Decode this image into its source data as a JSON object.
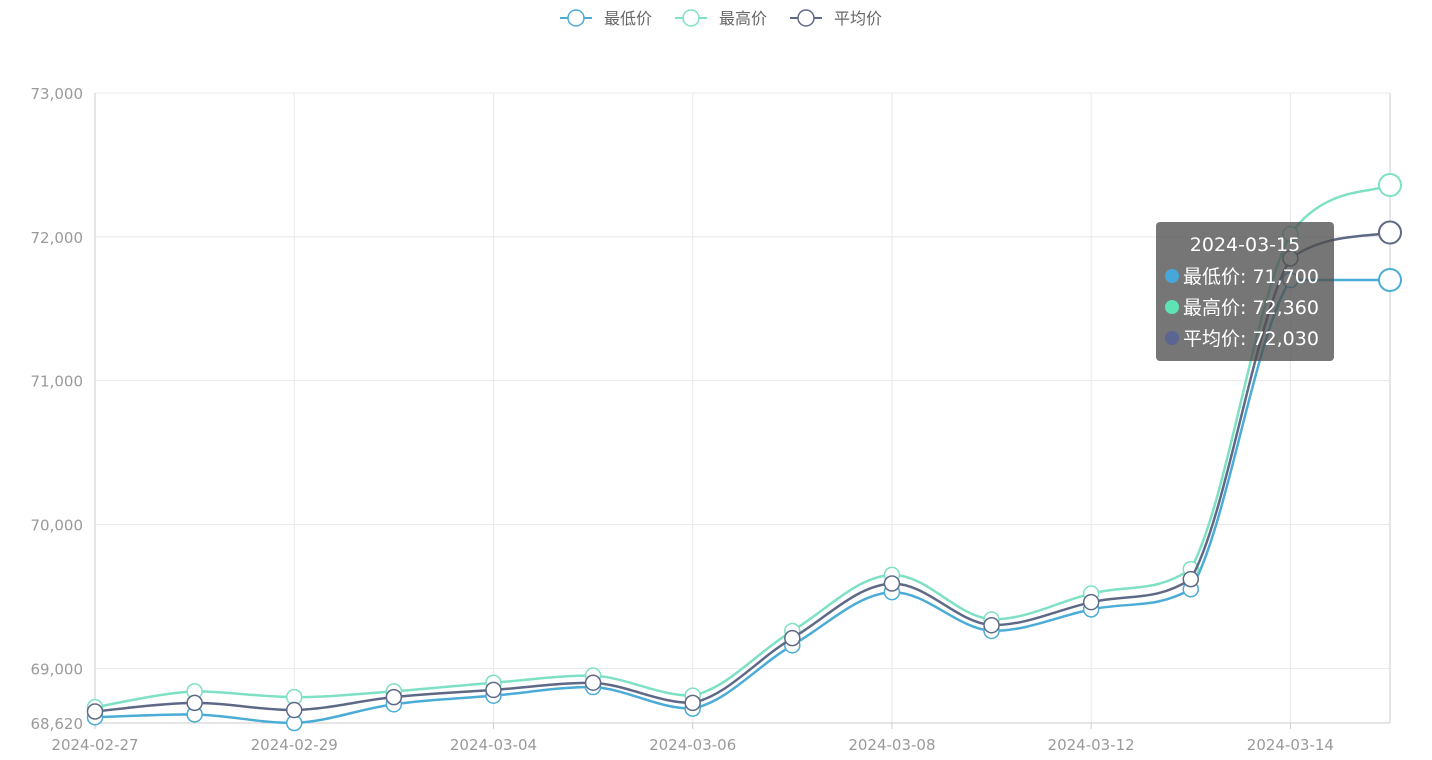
{
  "chart_data": {
    "type": "line",
    "smooth": true,
    "x": [
      "2024-02-27",
      "2024-02-28",
      "2024-02-29",
      "2024-03-01",
      "2024-03-04",
      "2024-03-05",
      "2024-03-06",
      "2024-03-07",
      "2024-03-08",
      "2024-03-11",
      "2024-03-12",
      "2024-03-13",
      "2024-03-14",
      "2024-03-15"
    ],
    "x_tick_labels": [
      "2024-02-27",
      "2024-02-29",
      "2024-03-04",
      "2024-03-06",
      "2024-03-08",
      "2024-03-12",
      "2024-03-14"
    ],
    "y_tick_labels": [
      "68,620",
      "69,000",
      "70,000",
      "71,000",
      "72,000",
      "73,000"
    ],
    "ylim": [
      68620,
      73000
    ],
    "grid": true,
    "legend_position": "top-center",
    "series": [
      {
        "name": "最低价",
        "color": "#4bacd6",
        "values": [
          68660,
          68680,
          68620,
          68750,
          68810,
          68870,
          68720,
          69160,
          69530,
          69260,
          69410,
          69550,
          71700,
          71700
        ]
      },
      {
        "name": "最高价",
        "color": "#7ee0c4",
        "values": [
          68730,
          68840,
          68800,
          68840,
          68900,
          68950,
          68810,
          69260,
          69650,
          69340,
          69520,
          69690,
          72020,
          72360
        ]
      },
      {
        "name": "平均价",
        "color": "#5f6987",
        "values": [
          68700,
          68760,
          68710,
          68800,
          68850,
          68900,
          68760,
          69210,
          69590,
          69300,
          69460,
          69620,
          71850,
          72030
        ]
      }
    ]
  },
  "tooltip": {
    "title": "2024-03-15",
    "rows": [
      {
        "label": "最低价: 71,700",
        "dot_color": "#47a7dd"
      },
      {
        "label": "最高价: 72,360",
        "dot_color": "#5ee3b4"
      },
      {
        "label": "平均价: 72,030",
        "dot_color": "#5a6591"
      }
    ]
  }
}
